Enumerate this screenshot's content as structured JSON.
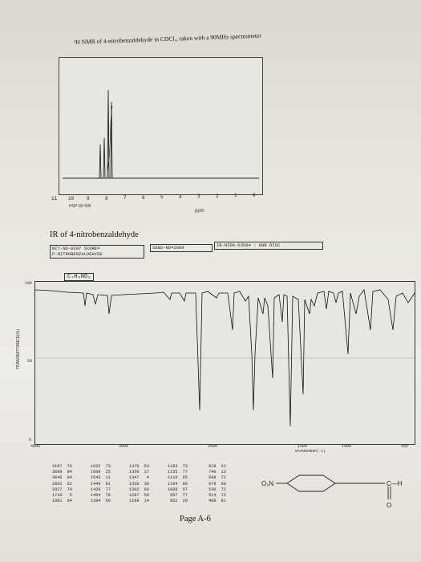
{
  "nmr": {
    "title": "¹H NMR of 4-nitrobenzaldehyde in CDCl₃, taken with a 90MHz spectrometer",
    "axis_ticks": [
      "11",
      "10",
      "9",
      "8",
      "7",
      "6",
      "5",
      "4",
      "3",
      "2",
      "1",
      "0"
    ],
    "axis_unit": "ppm",
    "code": "HSP-00-496"
  },
  "ir": {
    "title": "IR of 4-nitrobenzaldehyde",
    "header_left_1": "NIT-ND-0207 SCORE=",
    "header_left_2": "P-NITROBENZALDEHYDE",
    "header_mid": "SDBS-NO=2069",
    "header_right": "IR-NIDA-63564 : KBR DISC",
    "formula": "C₇H₅NO₃",
    "y_label": "TRANSMITTANCE(%)",
    "y_ticks": [
      "100",
      "50",
      "0"
    ],
    "x_ticks": [
      "4000",
      "3000",
      "2000",
      "1500",
      "1000",
      "500"
    ],
    "x_label": "WAVENUMBER(-1)"
  },
  "peaks": {
    "col1": "3107  70\n3080  84\n3046  84\n2862  62\n2827  70\n1710   5\n1681  64",
    "col2": "1632  73\n1608  25\n1543  11\n1446  81\n1420  77\n1404  78\n1384  60",
    "col3": "1376  53\n1350  17\n1347   4\n1320  39\n1302  66\n1287  50\n1199  14",
    "col4": "1163  73\n1155  77\n1110  65\n1104  65\n1008  57\n 857  77\n 852  20",
    "col5": " 819  21\n 740  13\n 688  72\n 679  60\n 530  72\n 514  72\n 468  81"
  },
  "structure": {
    "left_group": "O₂N",
    "right_group": "C—H",
    "carbonyl": "O"
  },
  "page_label": "Page A-6"
}
